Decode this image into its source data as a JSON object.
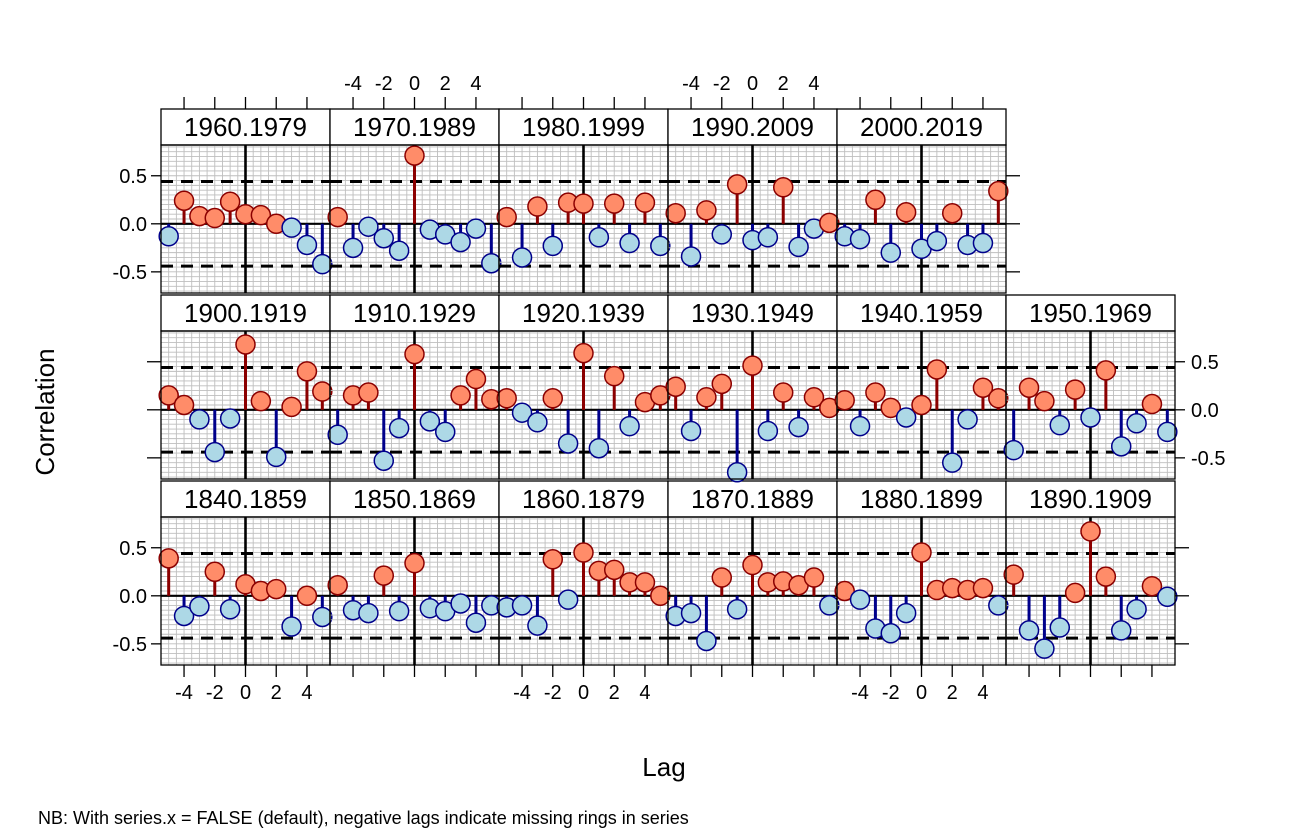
{
  "chart_data": {
    "type": "lollipop-lattice",
    "xlabel": "Lag",
    "ylabel": "Correlation",
    "footnote": "NB: With series.x = FALSE (default), negative lags indicate missing rings in series",
    "x_ticks": [
      -4,
      -2,
      0,
      2,
      4
    ],
    "x_tick_labels": [
      "-4",
      "-2",
      "0",
      "2",
      "4"
    ],
    "y_ticks": [
      -0.5,
      0.0,
      0.5
    ],
    "y_tick_labels": [
      "-0.5",
      "0.0",
      "0.5"
    ],
    "xlim": [
      -5.5,
      5.5
    ],
    "ylim": [
      -0.72,
      0.82
    ],
    "significance_level": 0.44,
    "lags": [
      -5,
      -4,
      -3,
      -2,
      -1,
      0,
      1,
      2,
      3,
      4,
      5
    ],
    "colors": {
      "positive_fill": "#ff8c69",
      "positive_stroke": "#8b0000",
      "negative_fill": "#add8e6",
      "negative_stroke": "#00008b",
      "grid": "#bebebe",
      "frame": "#000000"
    },
    "panels": [
      {
        "label": "1960.1979",
        "values": [
          -0.13,
          0.24,
          0.08,
          0.06,
          0.23,
          0.1,
          0.09,
          0.0,
          -0.04,
          -0.22,
          -0.42
        ]
      },
      {
        "label": "1970.1989",
        "values": [
          0.07,
          -0.25,
          -0.03,
          -0.15,
          -0.28,
          0.71,
          -0.06,
          -0.11,
          -0.19,
          -0.05,
          -0.41
        ]
      },
      {
        "label": "1980.1999",
        "values": [
          0.07,
          -0.35,
          0.18,
          -0.23,
          0.22,
          0.21,
          -0.14,
          0.21,
          -0.2,
          0.22,
          -0.23
        ]
      },
      {
        "label": "1990.2009",
        "values": [
          0.11,
          -0.34,
          0.14,
          -0.11,
          0.41,
          -0.17,
          -0.14,
          0.38,
          -0.24,
          -0.05,
          0.01
        ]
      },
      {
        "label": "2000.2019",
        "values": [
          -0.13,
          -0.16,
          0.25,
          -0.3,
          0.12,
          -0.26,
          -0.18,
          0.11,
          -0.22,
          -0.2,
          0.34
        ]
      },
      {
        "label": "1900.1919",
        "values": [
          0.15,
          0.05,
          -0.1,
          -0.44,
          -0.09,
          0.68,
          0.09,
          -0.49,
          0.03,
          0.4,
          0.19
        ]
      },
      {
        "label": "1910.1929",
        "values": [
          -0.26,
          0.15,
          0.18,
          -0.53,
          -0.19,
          0.58,
          -0.12,
          -0.23,
          0.15,
          0.32,
          0.11
        ]
      },
      {
        "label": "1920.1939",
        "values": [
          0.12,
          -0.03,
          -0.13,
          0.12,
          -0.35,
          0.59,
          -0.4,
          0.35,
          -0.17,
          0.08,
          0.15
        ]
      },
      {
        "label": "1930.1949",
        "values": [
          0.24,
          -0.22,
          0.13,
          0.27,
          -0.65,
          0.46,
          -0.22,
          0.18,
          -0.18,
          0.13,
          0.02
        ]
      },
      {
        "label": "1940.1959",
        "values": [
          0.1,
          -0.17,
          0.18,
          0.02,
          -0.08,
          0.05,
          0.42,
          -0.55,
          -0.1,
          0.23,
          0.12
        ]
      },
      {
        "label": "1950.1969",
        "values": [
          -0.42,
          0.23,
          0.09,
          -0.16,
          0.21,
          -0.08,
          0.41,
          -0.38,
          -0.14,
          0.06,
          -0.23
        ]
      },
      {
        "label": "1840.1859",
        "values": [
          0.39,
          -0.21,
          -0.11,
          0.25,
          -0.14,
          0.12,
          0.05,
          0.07,
          -0.32,
          0.0,
          -0.22
        ]
      },
      {
        "label": "1850.1869",
        "values": [
          0.11,
          -0.15,
          -0.18,
          0.21,
          -0.16,
          0.34,
          -0.13,
          -0.16,
          -0.08,
          -0.28,
          -0.1
        ]
      },
      {
        "label": "1860.1879",
        "values": [
          -0.12,
          -0.1,
          -0.31,
          0.38,
          -0.04,
          0.45,
          0.26,
          0.27,
          0.14,
          0.14,
          0.0
        ]
      },
      {
        "label": "1870.1889",
        "values": [
          -0.21,
          -0.18,
          -0.47,
          0.19,
          -0.14,
          0.32,
          0.14,
          0.15,
          0.11,
          0.19,
          -0.1
        ]
      },
      {
        "label": "1880.1899",
        "values": [
          0.05,
          -0.04,
          -0.34,
          -0.39,
          -0.18,
          0.45,
          0.06,
          0.08,
          0.06,
          0.08,
          -0.1
        ]
      },
      {
        "label": "1890.1909",
        "values": [
          0.22,
          -0.36,
          -0.55,
          -0.33,
          0.03,
          0.67,
          0.2,
          -0.36,
          -0.14,
          0.1,
          -0.01
        ]
      }
    ],
    "rows": [
      {
        "panels": [
          11,
          12,
          13,
          14,
          15,
          16
        ],
        "x_axis": "bottom",
        "y_axis": "left"
      },
      {
        "panels": [
          5,
          6,
          7,
          8,
          9,
          10
        ],
        "y_axis": "right"
      },
      {
        "panels": [
          0,
          1,
          2,
          3,
          4
        ],
        "x_axis": "top",
        "y_axis": "left"
      }
    ]
  }
}
